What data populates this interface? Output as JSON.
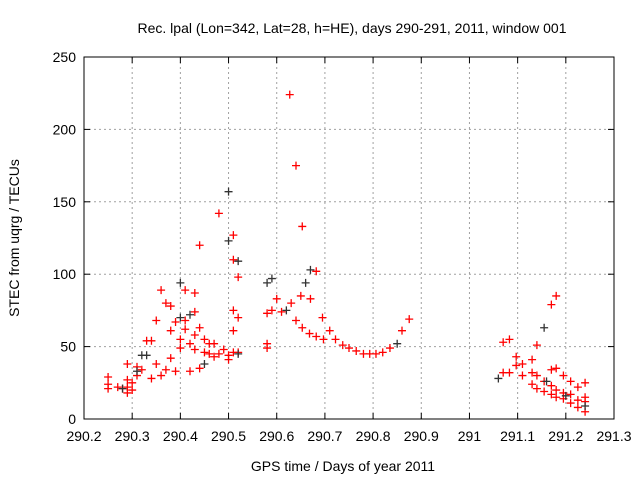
{
  "chart_data": {
    "type": "scatter",
    "title": "Rec. lpal (Lon=342, Lat=28, h=HE), days 290-291, 2011, window 001",
    "xlabel": "GPS time / Days of year 2011",
    "ylabel": "STEC from uqrg / TECUs",
    "xlim": [
      290.2,
      291.3
    ],
    "ylim": [
      0,
      250
    ],
    "xticks": [
      290.2,
      290.3,
      290.4,
      290.5,
      290.6,
      290.7,
      290.8,
      290.9,
      291,
      291.1,
      291.2,
      291.3
    ],
    "xtick_labels": [
      "290.2",
      "290.3",
      "290.4",
      "290.5",
      "290.6",
      "290.7",
      "290.8",
      "290.9",
      "291",
      "291.1",
      "291.2",
      "291.3"
    ],
    "yticks": [
      0,
      50,
      100,
      150,
      200,
      250
    ],
    "ytick_labels": [
      "0",
      "50",
      "100",
      "150",
      "200",
      "250"
    ],
    "grid": true,
    "marker": "+",
    "series": [
      {
        "name": "red",
        "color": "#ff0000",
        "points": [
          [
            290.25,
            29
          ],
          [
            290.25,
            24
          ],
          [
            290.25,
            21
          ],
          [
            290.27,
            22
          ],
          [
            290.28,
            21
          ],
          [
            290.29,
            18
          ],
          [
            290.29,
            22
          ],
          [
            290.29,
            27
          ],
          [
            290.29,
            38
          ],
          [
            290.3,
            20
          ],
          [
            290.3,
            25
          ],
          [
            290.31,
            30
          ],
          [
            290.31,
            36
          ],
          [
            290.32,
            34
          ],
          [
            290.33,
            54
          ],
          [
            290.34,
            54
          ],
          [
            290.34,
            28
          ],
          [
            290.35,
            68
          ],
          [
            290.35,
            38
          ],
          [
            290.36,
            89
          ],
          [
            290.36,
            30
          ],
          [
            290.37,
            80
          ],
          [
            290.37,
            34
          ],
          [
            290.38,
            78
          ],
          [
            290.38,
            42
          ],
          [
            290.38,
            61
          ],
          [
            290.39,
            67
          ],
          [
            290.39,
            33
          ],
          [
            290.4,
            55
          ],
          [
            290.4,
            49
          ],
          [
            290.41,
            89
          ],
          [
            290.41,
            68
          ],
          [
            290.41,
            62
          ],
          [
            290.42,
            52
          ],
          [
            290.42,
            33
          ],
          [
            290.43,
            87
          ],
          [
            290.43,
            74
          ],
          [
            290.43,
            58
          ],
          [
            290.43,
            48
          ],
          [
            290.44,
            120
          ],
          [
            290.44,
            63
          ],
          [
            290.44,
            35
          ],
          [
            290.45,
            55
          ],
          [
            290.45,
            46
          ],
          [
            290.46,
            52
          ],
          [
            290.46,
            45
          ],
          [
            290.47,
            43
          ],
          [
            290.47,
            52
          ],
          [
            290.48,
            142
          ],
          [
            290.48,
            45
          ],
          [
            290.49,
            48
          ],
          [
            290.5,
            44
          ],
          [
            290.5,
            41
          ],
          [
            290.51,
            127
          ],
          [
            290.51,
            110
          ],
          [
            290.51,
            75
          ],
          [
            290.51,
            61
          ],
          [
            290.51,
            46
          ],
          [
            290.52,
            98
          ],
          [
            290.52,
            70
          ],
          [
            290.52,
            46
          ],
          [
            290.58,
            73
          ],
          [
            290.58,
            52
          ],
          [
            290.58,
            49
          ],
          [
            290.59,
            75
          ],
          [
            290.6,
            83
          ],
          [
            290.61,
            74
          ],
          [
            290.627,
            224
          ],
          [
            290.64,
            175
          ],
          [
            290.63,
            80
          ],
          [
            290.64,
            68
          ],
          [
            290.653,
            133
          ],
          [
            290.65,
            85
          ],
          [
            290.653,
            63
          ],
          [
            290.668,
            59
          ],
          [
            290.682,
            57
          ],
          [
            290.697,
            55
          ],
          [
            290.67,
            83
          ],
          [
            290.682,
            102
          ],
          [
            290.695,
            70
          ],
          [
            290.71,
            61
          ],
          [
            290.722,
            55
          ],
          [
            290.737,
            51
          ],
          [
            290.75,
            49
          ],
          [
            290.765,
            47
          ],
          [
            290.78,
            45
          ],
          [
            290.793,
            45
          ],
          [
            290.806,
            45
          ],
          [
            290.82,
            46
          ],
          [
            290.835,
            49
          ],
          [
            290.86,
            61
          ],
          [
            290.875,
            69
          ],
          [
            291.07,
            53
          ],
          [
            291.083,
            55
          ],
          [
            291.097,
            43
          ],
          [
            291.097,
            37
          ],
          [
            291.11,
            38
          ],
          [
            291.13,
            41
          ],
          [
            291.14,
            51
          ],
          [
            291.07,
            32
          ],
          [
            291.083,
            32
          ],
          [
            291.11,
            30
          ],
          [
            291.13,
            32
          ],
          [
            291.14,
            30
          ],
          [
            291.13,
            24
          ],
          [
            291.14,
            21
          ],
          [
            291.155,
            26
          ],
          [
            291.155,
            19
          ],
          [
            291.17,
            79
          ],
          [
            291.18,
            85
          ],
          [
            291.17,
            34
          ],
          [
            291.18,
            35
          ],
          [
            291.17,
            23
          ],
          [
            291.17,
            17
          ],
          [
            291.18,
            20
          ],
          [
            291.18,
            15
          ],
          [
            291.195,
            30
          ],
          [
            291.195,
            18
          ],
          [
            291.195,
            14
          ],
          [
            291.21,
            26
          ],
          [
            291.21,
            17
          ],
          [
            291.21,
            11
          ],
          [
            291.225,
            22
          ],
          [
            291.225,
            13
          ],
          [
            291.225,
            8
          ],
          [
            291.24,
            25
          ],
          [
            291.24,
            15
          ],
          [
            291.24,
            12
          ],
          [
            291.24,
            5
          ]
        ]
      },
      {
        "name": "dark",
        "color": "#333333",
        "points": [
          [
            290.28,
            21
          ],
          [
            290.31,
            33
          ],
          [
            290.32,
            44
          ],
          [
            290.33,
            44
          ],
          [
            290.4,
            94
          ],
          [
            290.4,
            70
          ],
          [
            290.42,
            72
          ],
          [
            290.45,
            38
          ],
          [
            290.5,
            157
          ],
          [
            290.5,
            123
          ],
          [
            290.52,
            109
          ],
          [
            290.52,
            45
          ],
          [
            290.58,
            94
          ],
          [
            290.59,
            97
          ],
          [
            290.62,
            75
          ],
          [
            290.66,
            94
          ],
          [
            290.67,
            103
          ],
          [
            290.85,
            52
          ],
          [
            291.06,
            28
          ],
          [
            291.155,
            63
          ],
          [
            291.16,
            26
          ],
          [
            291.2,
            16
          ],
          [
            291.24,
            9
          ]
        ]
      }
    ]
  }
}
